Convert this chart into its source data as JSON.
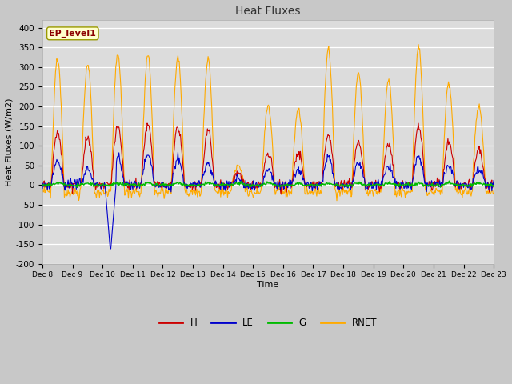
{
  "title": "Heat Fluxes",
  "xlabel": "Time",
  "ylabel": "Heat Fluxes (W/m2)",
  "ylim": [
    -200,
    420
  ],
  "yticks": [
    -200,
    -150,
    -100,
    -50,
    0,
    50,
    100,
    150,
    200,
    250,
    300,
    350,
    400
  ],
  "label_annotation": "EP_level1",
  "colors": {
    "H": "#cc0000",
    "LE": "#0000cc",
    "G": "#00bb00",
    "RNET": "#ffaa00"
  },
  "fig_bg": "#c8c8c8",
  "plot_bg": "#dcdcdc",
  "grid_color": "#ffffff",
  "start_day": 8,
  "end_day": 23,
  "n_points": 720,
  "figsize": [
    6.4,
    4.8
  ],
  "dpi": 100
}
